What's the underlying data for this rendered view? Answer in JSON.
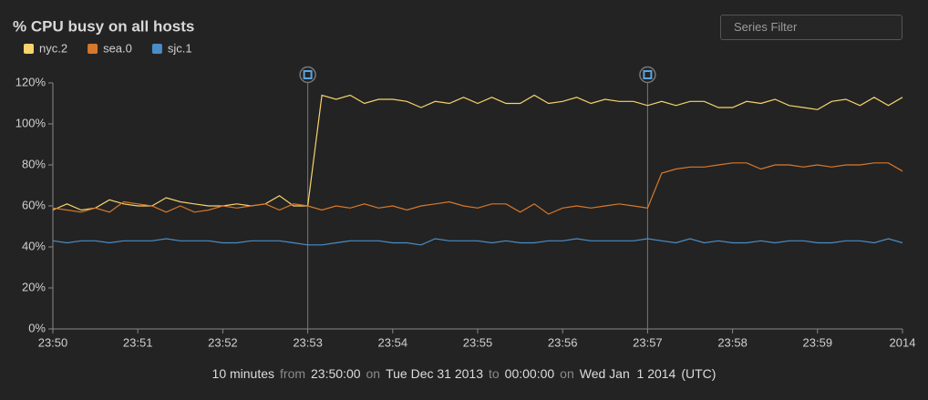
{
  "chart_data": {
    "type": "line",
    "title": "% CPU busy on all hosts",
    "x": [
      0,
      10,
      20,
      30,
      40,
      50,
      60,
      70,
      80,
      90,
      100,
      110,
      120,
      130,
      140,
      150,
      160,
      170,
      180,
      190,
      200,
      210,
      220,
      230,
      240,
      250,
      260,
      270,
      280,
      290,
      300,
      310,
      320,
      330,
      340,
      350,
      360,
      370,
      380,
      390,
      400,
      410,
      420,
      430,
      440,
      450,
      460,
      470,
      480,
      490,
      500,
      510,
      520,
      530,
      540,
      550,
      560,
      570,
      580,
      590,
      600
    ],
    "series": [
      {
        "name": "nyc.2",
        "color": "#f6d36b",
        "values": [
          58,
          61,
          58,
          59,
          63,
          61,
          60,
          60,
          64,
          62,
          61,
          60,
          60,
          61,
          60,
          61,
          65,
          60,
          60,
          114,
          112,
          114,
          110,
          112,
          112,
          111,
          108,
          111,
          110,
          113,
          110,
          113,
          110,
          110,
          114,
          110,
          111,
          113,
          110,
          112,
          111,
          111,
          109,
          111,
          109,
          111,
          111,
          108,
          108,
          111,
          110,
          112,
          109,
          108,
          107,
          111,
          112,
          109,
          113,
          109,
          113
        ]
      },
      {
        "name": "sea.0",
        "color": "#d7782b",
        "values": [
          59,
          58,
          57,
          59,
          57,
          62,
          61,
          60,
          57,
          60,
          57,
          58,
          60,
          59,
          60,
          61,
          58,
          61,
          60,
          58,
          60,
          59,
          61,
          59,
          60,
          58,
          60,
          61,
          62,
          60,
          59,
          61,
          61,
          57,
          61,
          56,
          59,
          60,
          59,
          60,
          61,
          60,
          59,
          76,
          78,
          79,
          79,
          80,
          81,
          81,
          78,
          80,
          80,
          79,
          80,
          79,
          80,
          80,
          81,
          81,
          77
        ]
      },
      {
        "name": "sjc.1",
        "color": "#4b8dc6",
        "values": [
          43,
          42,
          43,
          43,
          42,
          43,
          43,
          43,
          44,
          43,
          43,
          43,
          42,
          42,
          43,
          43,
          43,
          42,
          41,
          41,
          42,
          43,
          43,
          43,
          42,
          42,
          41,
          44,
          43,
          43,
          43,
          42,
          43,
          42,
          42,
          43,
          43,
          44,
          43,
          43,
          43,
          43,
          44,
          43,
          42,
          44,
          42,
          43,
          42,
          42,
          43,
          42,
          43,
          43,
          42,
          42,
          43,
          43,
          42,
          44,
          42
        ]
      }
    ],
    "xlim": [
      0,
      600
    ],
    "xticks": [
      {
        "value": 0,
        "label": "23:50"
      },
      {
        "value": 60,
        "label": "23:51"
      },
      {
        "value": 120,
        "label": "23:52"
      },
      {
        "value": 180,
        "label": "23:53"
      },
      {
        "value": 240,
        "label": "23:54"
      },
      {
        "value": 300,
        "label": "23:55"
      },
      {
        "value": 360,
        "label": "23:56"
      },
      {
        "value": 420,
        "label": "23:57"
      },
      {
        "value": 480,
        "label": "23:58"
      },
      {
        "value": 540,
        "label": "23:59"
      },
      {
        "value": 600,
        "label": "2014"
      }
    ],
    "ylim": [
      0,
      120
    ],
    "yticks": [
      {
        "value": 0,
        "label": "0%"
      },
      {
        "value": 20,
        "label": "20%"
      },
      {
        "value": 40,
        "label": "40%"
      },
      {
        "value": 60,
        "label": "60%"
      },
      {
        "value": 80,
        "label": "80%"
      },
      {
        "value": 100,
        "label": "100%"
      },
      {
        "value": 120,
        "label": "120%"
      }
    ],
    "grid": false,
    "event_markers": [
      180,
      420
    ]
  },
  "ui": {
    "filter_placeholder": "Series Filter",
    "footer": [
      {
        "text": "10 minutes",
        "bright": true
      },
      {
        "text": "from",
        "bright": false
      },
      {
        "text": "23:50:00",
        "bright": true
      },
      {
        "text": "on",
        "bright": false
      },
      {
        "text": "Tue Dec 31 2013",
        "bright": true
      },
      {
        "text": "to",
        "bright": false
      },
      {
        "text": "00:00:00",
        "bright": true
      },
      {
        "text": "on",
        "bright": false
      },
      {
        "text": "Wed Jan  1 2014",
        "bright": true
      },
      {
        "text": "(UTC)",
        "bright": true
      }
    ]
  }
}
